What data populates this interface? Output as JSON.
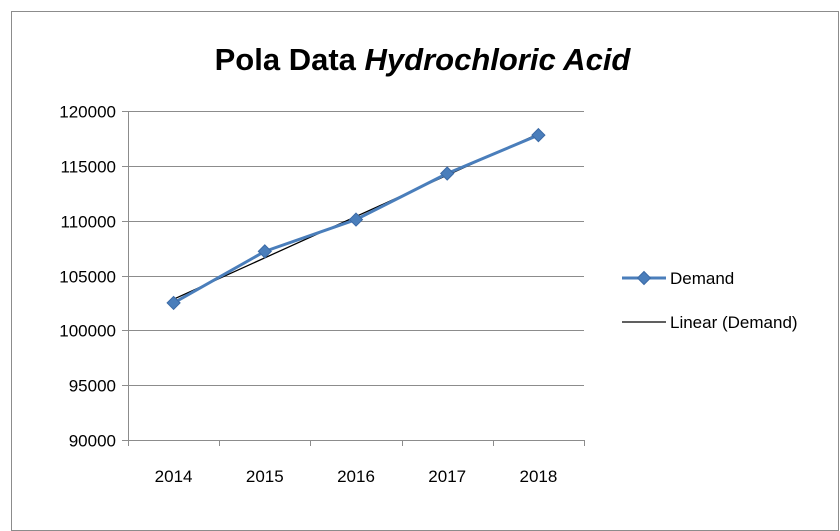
{
  "chart_data": {
    "type": "line",
    "title": "Pola Data Hydrochloric Acid",
    "title_parts": {
      "plain": "Pola Data ",
      "italic": "Hydrochloric Acid"
    },
    "categories": [
      "2014",
      "2015",
      "2016",
      "2017",
      "2018"
    ],
    "series": [
      {
        "name": "Demand",
        "values": [
          102500,
          107200,
          110100,
          114300,
          117800
        ],
        "color": "#4a7ebb",
        "marker": "diamond"
      }
    ],
    "trendline": {
      "name": "Linear (Demand)",
      "type": "linear",
      "color": "#000000"
    },
    "ylim": [
      90000,
      120000
    ],
    "yticks": [
      90000,
      95000,
      100000,
      105000,
      110000,
      115000,
      120000
    ],
    "xlabel": "",
    "ylabel": "",
    "grid": true,
    "legend_position": "right"
  }
}
